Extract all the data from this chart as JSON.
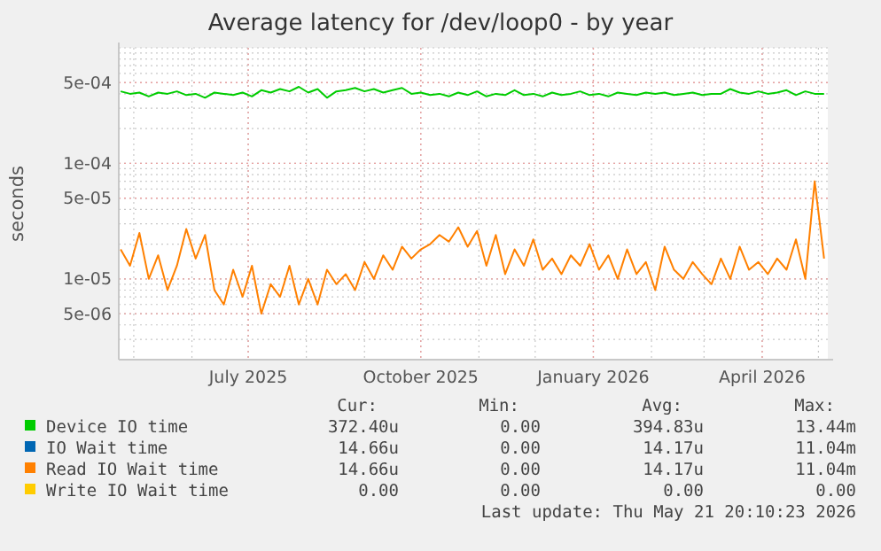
{
  "chart_data": {
    "type": "line",
    "title": "Average latency for /dev/loop0 - by year",
    "ylabel": "seconds",
    "log": "y",
    "grid": true,
    "legend": "bottom",
    "marker": "none",
    "line_style": "solid",
    "xlim": [
      "2025-04-23",
      "2026-05-06"
    ],
    "xticks": [
      {
        "value": "2025-07-01",
        "label": "July 2025"
      },
      {
        "value": "2025-10-01",
        "label": "October 2025"
      },
      {
        "value": "2026-01-01",
        "label": "January 2026"
      },
      {
        "value": "2026-04-01",
        "label": "April 2026"
      }
    ],
    "ylim": [
      2e-06,
      0.001
    ],
    "yticks": [
      {
        "value": 0.0005,
        "label": "5e-04"
      },
      {
        "value": 0.0001,
        "label": "1e-04"
      },
      {
        "value": 5e-05,
        "label": "5e-05"
      },
      {
        "value": 1e-05,
        "label": "1e-05"
      },
      {
        "value": 5e-06,
        "label": "5e-06"
      }
    ],
    "x": [
      "2025-04-24",
      "2025-04-29",
      "2025-05-04",
      "2025-05-09",
      "2025-05-14",
      "2025-05-19",
      "2025-05-24",
      "2025-05-29",
      "2025-06-03",
      "2025-06-08",
      "2025-06-13",
      "2025-06-18",
      "2025-06-23",
      "2025-06-28",
      "2025-07-03",
      "2025-07-08",
      "2025-07-13",
      "2025-07-18",
      "2025-07-23",
      "2025-07-28",
      "2025-08-02",
      "2025-08-07",
      "2025-08-12",
      "2025-08-17",
      "2025-08-22",
      "2025-08-27",
      "2025-09-01",
      "2025-09-06",
      "2025-09-11",
      "2025-09-16",
      "2025-09-21",
      "2025-09-26",
      "2025-10-01",
      "2025-10-06",
      "2025-10-11",
      "2025-10-16",
      "2025-10-21",
      "2025-10-26",
      "2025-10-31",
      "2025-11-05",
      "2025-11-10",
      "2025-11-15",
      "2025-11-20",
      "2025-11-25",
      "2025-11-30",
      "2025-12-05",
      "2025-12-10",
      "2025-12-15",
      "2025-12-20",
      "2025-12-25",
      "2025-12-30",
      "2026-01-04",
      "2026-01-09",
      "2026-01-14",
      "2026-01-19",
      "2026-01-24",
      "2026-01-29",
      "2026-02-03",
      "2026-02-08",
      "2026-02-13",
      "2026-02-18",
      "2026-02-23",
      "2026-02-28",
      "2026-03-05",
      "2026-03-10",
      "2026-03-15",
      "2026-03-20",
      "2026-03-25",
      "2026-03-30",
      "2026-04-04",
      "2026-04-09",
      "2026-04-14",
      "2026-04-19",
      "2026-04-24",
      "2026-04-29",
      "2026-05-04"
    ],
    "series": [
      {
        "name": "Device IO time",
        "color": "#00cc00",
        "values": [
          0.00042,
          0.0004,
          0.00041,
          0.00038,
          0.00041,
          0.0004,
          0.00042,
          0.00039,
          0.0004,
          0.00037,
          0.00041,
          0.0004,
          0.00039,
          0.00041,
          0.00038,
          0.00043,
          0.00041,
          0.00044,
          0.00042,
          0.00046,
          0.00041,
          0.00044,
          0.00037,
          0.00042,
          0.00043,
          0.00045,
          0.00042,
          0.00044,
          0.00041,
          0.00043,
          0.00045,
          0.0004,
          0.00041,
          0.00039,
          0.0004,
          0.00038,
          0.00041,
          0.00039,
          0.00042,
          0.00038,
          0.0004,
          0.00039,
          0.00043,
          0.00039,
          0.0004,
          0.00038,
          0.00041,
          0.00039,
          0.0004,
          0.00042,
          0.00039,
          0.0004,
          0.00038,
          0.00041,
          0.0004,
          0.00039,
          0.00041,
          0.0004,
          0.00041,
          0.00039,
          0.0004,
          0.00041,
          0.00039,
          0.0004,
          0.0004,
          0.00044,
          0.00041,
          0.0004,
          0.00042,
          0.0004,
          0.00041,
          0.00043,
          0.00039,
          0.00042,
          0.0004,
          0.0004
        ]
      },
      {
        "name": "IO Wait time",
        "color": "#0066b3",
        "values": [
          null,
          null,
          null,
          null,
          null,
          null,
          null,
          null,
          null,
          null,
          null,
          null,
          null,
          null,
          null,
          null,
          null,
          null,
          null,
          null,
          null,
          null,
          null,
          null,
          null,
          null,
          null,
          null,
          null,
          null,
          null,
          null,
          null,
          null,
          null,
          null,
          null,
          null,
          null,
          null,
          null,
          null,
          null,
          null,
          null,
          null,
          null,
          null,
          null,
          null,
          null,
          null,
          null,
          null,
          null,
          null,
          null,
          null,
          null,
          null,
          null,
          null,
          null,
          null,
          null,
          null,
          null,
          null,
          null,
          null,
          null,
          null,
          null,
          null,
          null,
          null
        ]
      },
      {
        "name": "Read IO Wait time",
        "color": "#ff8000",
        "values": [
          1.8e-05,
          1.3e-05,
          2.5e-05,
          1e-05,
          1.6e-05,
          8e-06,
          1.3e-05,
          2.7e-05,
          1.5e-05,
          2.4e-05,
          8e-06,
          6e-06,
          1.2e-05,
          7e-06,
          1.3e-05,
          5e-06,
          9e-06,
          7e-06,
          1.3e-05,
          6e-06,
          1e-05,
          6e-06,
          1.2e-05,
          9e-06,
          1.1e-05,
          8e-06,
          1.4e-05,
          1e-05,
          1.6e-05,
          1.2e-05,
          1.9e-05,
          1.5e-05,
          1.8e-05,
          2e-05,
          2.4e-05,
          2.1e-05,
          2.8e-05,
          1.9e-05,
          2.6e-05,
          1.3e-05,
          2.4e-05,
          1.1e-05,
          1.8e-05,
          1.3e-05,
          2.2e-05,
          1.2e-05,
          1.5e-05,
          1.1e-05,
          1.6e-05,
          1.3e-05,
          2e-05,
          1.2e-05,
          1.6e-05,
          1e-05,
          1.8e-05,
          1.1e-05,
          1.4e-05,
          8e-06,
          1.9e-05,
          1.2e-05,
          1e-05,
          1.4e-05,
          1.1e-05,
          9e-06,
          1.5e-05,
          1e-05,
          1.9e-05,
          1.2e-05,
          1.4e-05,
          1.1e-05,
          1.5e-05,
          1.2e-05,
          2.2e-05,
          1e-05,
          7e-05,
          1.5e-05
        ]
      },
      {
        "name": "Write IO Wait time",
        "color": "#ffcc00",
        "values": [
          null,
          null,
          null,
          null,
          null,
          null,
          null,
          null,
          null,
          null,
          null,
          null,
          null,
          null,
          null,
          null,
          null,
          null,
          null,
          null,
          null,
          null,
          null,
          null,
          null,
          null,
          null,
          null,
          null,
          null,
          null,
          null,
          null,
          null,
          null,
          null,
          null,
          null,
          null,
          null,
          null,
          null,
          null,
          null,
          null,
          null,
          null,
          null,
          null,
          null,
          null,
          null,
          null,
          null,
          null,
          null,
          null,
          null,
          null,
          null,
          null,
          null,
          null,
          null,
          null,
          null,
          null,
          null,
          null,
          null,
          null,
          null,
          null,
          null,
          null,
          null
        ]
      }
    ],
    "annotations": [
      "Cur:",
      "Min:",
      "Avg:",
      "Max:",
      "372.40u",
      "0.00",
      "394.83u",
      "13.44m",
      "14.66u",
      "0.00",
      "14.17u",
      "11.04m",
      "14.66u",
      "0.00",
      "14.17u",
      "11.04m",
      "0.00",
      "0.00",
      "0.00",
      "0.00",
      "Last update: Thu May 21 20:10:23 2026"
    ]
  }
}
